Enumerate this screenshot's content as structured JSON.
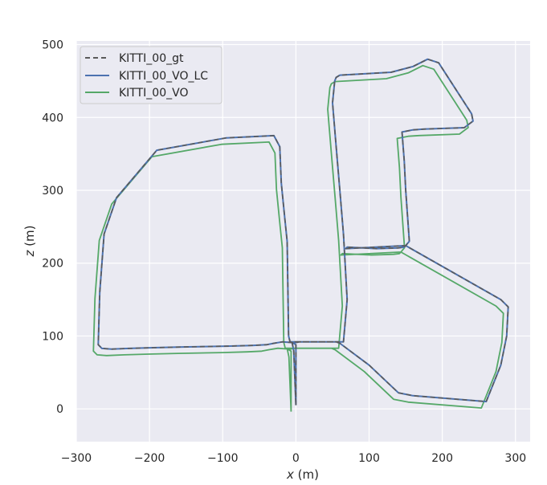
{
  "chart_data": {
    "type": "line",
    "title": "",
    "xlabel": "x (m)",
    "ylabel": "z (m)",
    "xlim": [
      -300,
      320
    ],
    "ylim": [
      -45,
      505
    ],
    "xticks": [
      -300,
      -200,
      -100,
      0,
      100,
      200,
      300
    ],
    "yticks": [
      0,
      100,
      200,
      300,
      400,
      500
    ],
    "grid": true,
    "legend_position": "top-left",
    "series": [
      {
        "name": "KITTI_00_gt",
        "color": "#5a5a5a",
        "style": "dashed",
        "x": [
          0,
          0,
          0,
          -5,
          -18,
          -30,
          -40,
          -60,
          -95,
          -155,
          -195,
          -228,
          -252,
          -265,
          -270,
          -268,
          -262,
          -245,
          -190,
          -95,
          -30,
          -22,
          -20,
          -15,
          -12,
          -10,
          -8,
          65,
          70,
          65,
          60,
          55,
          50,
          53,
          55,
          60,
          130,
          160,
          180,
          195,
          240,
          242,
          230,
          175,
          160,
          145,
          148,
          150,
          155,
          150,
          148,
          140,
          110,
          70,
          68,
          150,
          280,
          290,
          288,
          280,
          260,
          160,
          150,
          140,
          100,
          60,
          55,
          5,
          -5,
          -3,
          0
        ],
        "y": [
          5,
          40,
          88,
          91,
          92,
          90,
          88,
          87,
          86,
          85,
          84,
          83,
          82,
          83,
          88,
          160,
          240,
          290,
          355,
          372,
          375,
          360,
          310,
          260,
          230,
          100,
          92,
          92,
          150,
          240,
          300,
          360,
          420,
          450,
          455,
          458,
          462,
          470,
          480,
          475,
          405,
          395,
          386,
          384,
          383,
          380,
          340,
          300,
          230,
          224,
          222,
          221,
          220,
          222,
          220,
          224,
          150,
          140,
          100,
          60,
          10,
          18,
          20,
          22,
          60,
          90,
          92,
          92,
          90,
          80,
          5
        ],
        "note": ""
      },
      {
        "name": "KITTI_00_VO_LC",
        "color": "#4c72b0",
        "style": "solid",
        "x": [],
        "y": []
      },
      {
        "name": "KITTI_00_VO",
        "color": "#55a868",
        "style": "solid",
        "x": [],
        "y": []
      }
    ]
  }
}
